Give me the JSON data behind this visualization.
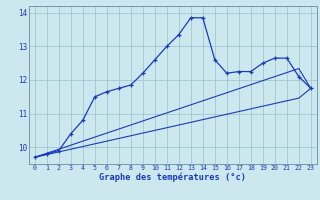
{
  "xlabel": "Graphe des températures (°c)",
  "background_color": "#cce8ee",
  "line_color": "#1a3abd",
  "grid_color": "#a0c8d0",
  "x_hours": [
    0,
    1,
    2,
    3,
    4,
    5,
    6,
    7,
    8,
    9,
    10,
    11,
    12,
    13,
    14,
    15,
    16,
    17,
    18,
    19,
    20,
    21,
    22,
    23
  ],
  "temp_main": [
    9.7,
    9.8,
    9.9,
    10.4,
    10.8,
    11.5,
    11.65,
    11.75,
    11.85,
    12.2,
    12.6,
    13.0,
    13.35,
    13.85,
    13.85,
    12.6,
    12.2,
    12.25,
    12.25,
    12.5,
    12.65,
    12.65,
    12.1,
    11.75
  ],
  "temp_linear_low": [
    9.7,
    9.78,
    9.86,
    9.94,
    10.02,
    10.1,
    10.18,
    10.26,
    10.34,
    10.42,
    10.5,
    10.58,
    10.66,
    10.74,
    10.82,
    10.9,
    10.98,
    11.06,
    11.14,
    11.22,
    11.3,
    11.38,
    11.46,
    11.75
  ],
  "temp_linear_mid": [
    9.7,
    9.82,
    9.94,
    10.06,
    10.18,
    10.3,
    10.42,
    10.54,
    10.66,
    10.78,
    10.9,
    11.02,
    11.14,
    11.26,
    11.38,
    11.5,
    11.62,
    11.74,
    11.86,
    11.98,
    12.1,
    12.22,
    12.34,
    11.75
  ],
  "ylim_min": 9.5,
  "ylim_max": 14.2,
  "yticks": [
    10,
    11,
    12,
    13,
    14
  ]
}
